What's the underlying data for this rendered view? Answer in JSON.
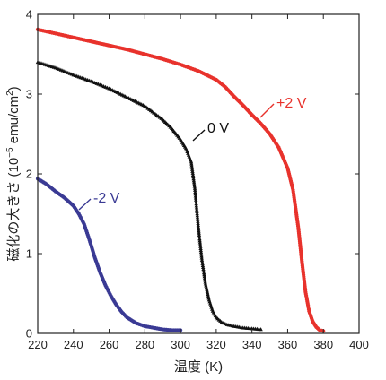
{
  "chart_data": {
    "type": "scatter",
    "title": "",
    "xlabel": "温度 (K)",
    "ylabel_main": "磁化の大きさ (10",
    "ylabel_exp": "−5",
    "ylabel_tail": " emu/cm",
    "ylabel_sq": "2",
    "ylabel_end": ")",
    "xlim": [
      220,
      400
    ],
    "ylim": [
      0,
      4
    ],
    "x_ticks": [
      "220",
      "240",
      "260",
      "280",
      "300",
      "320",
      "340",
      "360",
      "380",
      "400"
    ],
    "y_ticks": [
      "0",
      "1",
      "2",
      "3",
      "4"
    ],
    "grid": false,
    "series": [
      {
        "name": "+2 V",
        "color": "#e8322c",
        "marker": "circle",
        "x": [
          220,
          230,
          240,
          250,
          260,
          270,
          280,
          290,
          300,
          310,
          320,
          325,
          330,
          335,
          340,
          345,
          350,
          355,
          360,
          363,
          366,
          368,
          370,
          372,
          374,
          376,
          378,
          380
        ],
        "y": [
          3.81,
          3.76,
          3.71,
          3.66,
          3.61,
          3.56,
          3.5,
          3.44,
          3.37,
          3.29,
          3.18,
          3.09,
          2.97,
          2.86,
          2.74,
          2.63,
          2.5,
          2.33,
          2.07,
          1.8,
          1.32,
          0.9,
          0.52,
          0.28,
          0.15,
          0.08,
          0.04,
          0.03
        ]
      },
      {
        "name": "0 V",
        "color": "#111111",
        "marker": "triangle",
        "x": [
          220,
          230,
          240,
          250,
          260,
          270,
          280,
          290,
          295,
          300,
          303,
          306,
          308,
          310,
          312,
          314,
          316,
          318,
          320,
          323,
          326,
          330,
          335,
          340,
          345
        ],
        "y": [
          3.4,
          3.33,
          3.24,
          3.16,
          3.07,
          2.96,
          2.85,
          2.68,
          2.57,
          2.43,
          2.32,
          2.15,
          1.82,
          1.33,
          0.92,
          0.62,
          0.42,
          0.28,
          0.2,
          0.14,
          0.11,
          0.09,
          0.07,
          0.06,
          0.05
        ]
      },
      {
        "name": "-2 V",
        "color": "#3a3a94",
        "marker": "circle",
        "x": [
          220,
          225,
          230,
          235,
          240,
          243,
          246,
          249,
          252,
          255,
          258,
          261,
          264,
          267,
          270,
          275,
          280,
          285,
          290,
          295,
          300
        ],
        "y": [
          1.94,
          1.87,
          1.78,
          1.7,
          1.6,
          1.5,
          1.37,
          1.17,
          0.95,
          0.76,
          0.6,
          0.47,
          0.36,
          0.27,
          0.2,
          0.13,
          0.09,
          0.07,
          0.05,
          0.04,
          0.04
        ]
      }
    ]
  }
}
